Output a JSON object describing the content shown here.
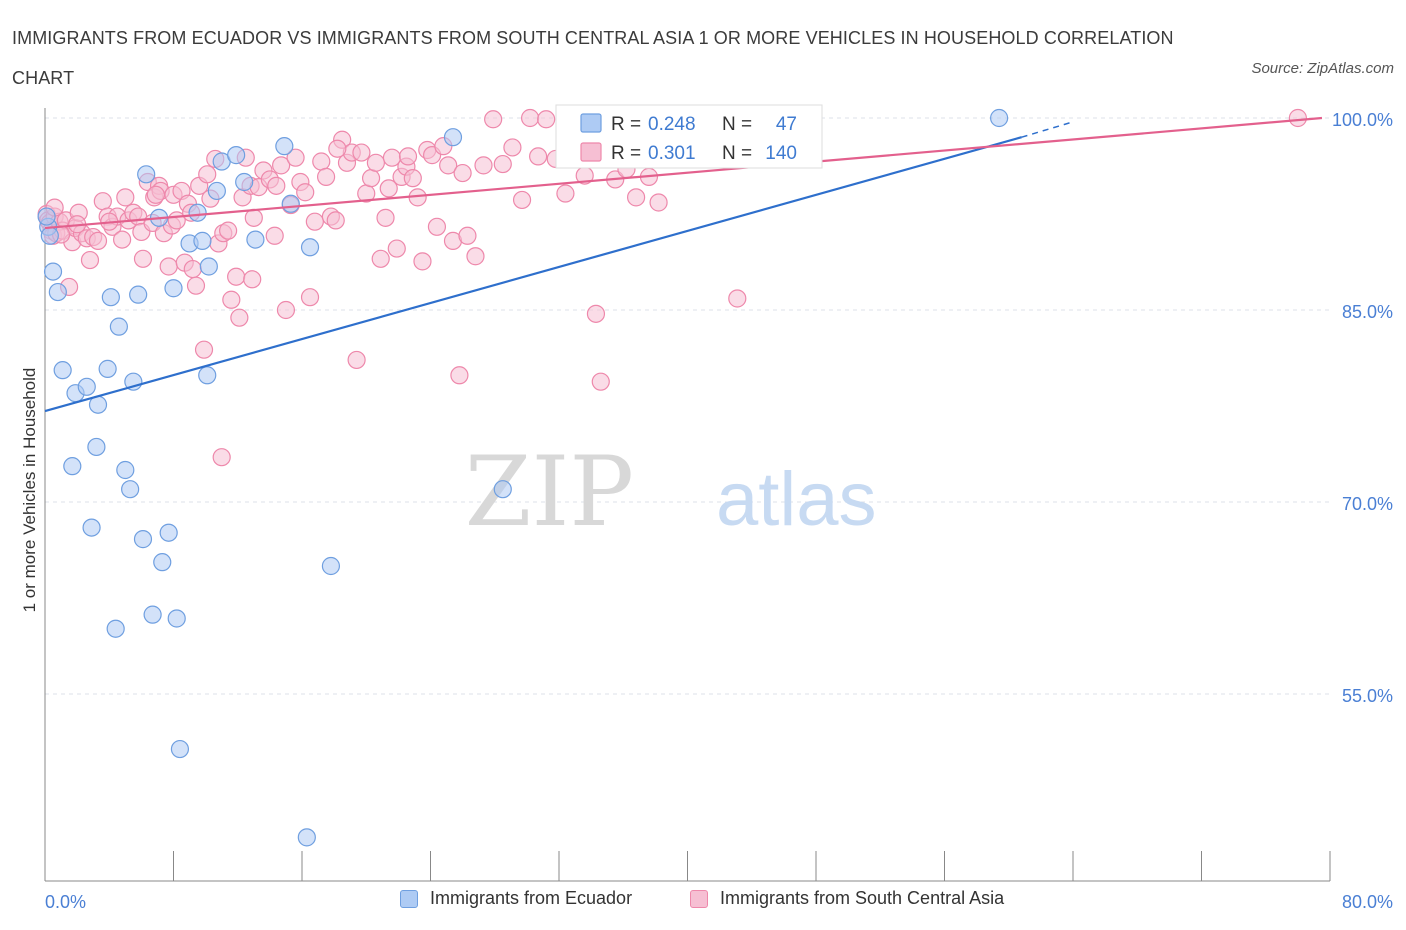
{
  "title": "IMMIGRANTS FROM ECUADOR VS IMMIGRANTS FROM SOUTH CENTRAL ASIA 1 OR MORE VEHICLES IN HOUSEHOLD CORRELATION CHART",
  "source": "Source: ZipAtlas.com",
  "watermark": {
    "zip": "ZIP",
    "atlas": "atlas"
  },
  "colors": {
    "blue": "#6f9fe0",
    "blue_fill": "#aecbf4",
    "blue_line": "#2e6fcc",
    "pink": "#ee88ab",
    "pink_fill": "#f6bfd3",
    "pink_line": "#e3608d",
    "axis_text": "#4a7fd4",
    "grid": "#dde2ea"
  },
  "legend": {
    "rows": [
      {
        "r_label": "R = ",
        "r_value": "0.248",
        "n_label": "N = ",
        "n_value": "47"
      },
      {
        "r_label": "R = ",
        "r_value": "0.301",
        "n_label": "N = ",
        "n_value": "140"
      }
    ]
  },
  "bottom_legend": [
    "Immigrants from Ecuador",
    "Immigrants from South Central Asia"
  ],
  "chart_data": {
    "type": "scatter",
    "title": "IMMIGRANTS FROM ECUADOR VS IMMIGRANTS FROM SOUTH CENTRAL ASIA 1 OR MORE VEHICLES IN HOUSEHOLD CORRELATION CHART",
    "xlabel": "",
    "ylabel": "1 or more Vehicles in Household",
    "xlim": [
      0,
      80
    ],
    "ylim": [
      40,
      100.5
    ],
    "x_tick_labels": [
      "0.0%",
      "80.0%"
    ],
    "y_ticks": [
      {
        "value": 100,
        "label": "100.0%"
      },
      {
        "value": 85,
        "label": "85.0%"
      },
      {
        "value": 70,
        "label": "70.0%"
      },
      {
        "value": 55,
        "label": "55.0%"
      }
    ],
    "grid": true,
    "legend_position": "top-center",
    "series": [
      {
        "name": "Immigrants from Ecuador",
        "color": "blue",
        "trend": {
          "x0": 0,
          "y0": 77.1,
          "x1": 60.8,
          "y1": 98.5,
          "dash_to_x": 64.0,
          "dash_to_y": 99.7
        },
        "points": [
          [
            0.2,
            91.5
          ],
          [
            0.3,
            90.8
          ],
          [
            0.5,
            88.0
          ],
          [
            0.8,
            86.4
          ],
          [
            1.1,
            80.3
          ],
          [
            1.7,
            72.8
          ],
          [
            1.9,
            78.5
          ],
          [
            2.6,
            79.0
          ],
          [
            2.9,
            68.0
          ],
          [
            3.2,
            74.3
          ],
          [
            3.3,
            77.6
          ],
          [
            3.9,
            80.4
          ],
          [
            4.1,
            86.0
          ],
          [
            4.4,
            60.1
          ],
          [
            4.6,
            83.7
          ],
          [
            5.0,
            72.5
          ],
          [
            5.3,
            71.0
          ],
          [
            5.5,
            79.4
          ],
          [
            5.8,
            86.2
          ],
          [
            6.1,
            67.1
          ],
          [
            6.3,
            95.6
          ],
          [
            6.7,
            61.2
          ],
          [
            7.1,
            92.2
          ],
          [
            7.3,
            65.3
          ],
          [
            7.7,
            67.6
          ],
          [
            8.0,
            86.7
          ],
          [
            8.2,
            60.9
          ],
          [
            8.4,
            50.7
          ],
          [
            9.0,
            90.2
          ],
          [
            9.5,
            92.6
          ],
          [
            9.8,
            90.4
          ],
          [
            10.2,
            88.4
          ],
          [
            10.1,
            79.9
          ],
          [
            10.7,
            94.3
          ],
          [
            11.0,
            96.6
          ],
          [
            11.9,
            97.1
          ],
          [
            12.4,
            95.0
          ],
          [
            13.1,
            90.5
          ],
          [
            14.9,
            97.8
          ],
          [
            15.3,
            93.3
          ],
          [
            16.3,
            43.8
          ],
          [
            16.5,
            89.9
          ],
          [
            17.8,
            65.0
          ],
          [
            25.4,
            98.5
          ],
          [
            28.5,
            71.0
          ],
          [
            59.4,
            100.0
          ],
          [
            0.1,
            92.3
          ]
        ]
      },
      {
        "name": "Immigrants from South Central Asia",
        "color": "pink",
        "trend": {
          "x0": 0,
          "y0": 91.4,
          "x1": 79.5,
          "y1": 100.0
        },
        "points": [
          [
            0.1,
            92.5
          ],
          [
            0.2,
            92.0
          ],
          [
            0.3,
            91.8
          ],
          [
            0.4,
            91.2
          ],
          [
            0.5,
            90.8
          ],
          [
            0.6,
            92.3
          ],
          [
            0.7,
            91.0
          ],
          [
            0.9,
            91.9
          ],
          [
            1.1,
            91.2
          ],
          [
            1.3,
            92.0
          ],
          [
            1.5,
            86.8
          ],
          [
            1.7,
            90.3
          ],
          [
            1.9,
            91.4
          ],
          [
            2.1,
            92.6
          ],
          [
            2.3,
            91.0
          ],
          [
            2.6,
            90.6
          ],
          [
            2.8,
            88.9
          ],
          [
            3.0,
            90.7
          ],
          [
            3.3,
            90.4
          ],
          [
            3.6,
            93.5
          ],
          [
            3.9,
            92.3
          ],
          [
            4.2,
            91.5
          ],
          [
            4.5,
            92.3
          ],
          [
            4.8,
            90.5
          ],
          [
            5.0,
            93.8
          ],
          [
            5.2,
            92.0
          ],
          [
            5.5,
            92.6
          ],
          [
            5.8,
            92.3
          ],
          [
            6.0,
            91.1
          ],
          [
            6.1,
            89.0
          ],
          [
            6.4,
            95.0
          ],
          [
            6.7,
            91.8
          ],
          [
            6.8,
            93.8
          ],
          [
            7.1,
            94.7
          ],
          [
            7.2,
            94.3
          ],
          [
            7.4,
            91.0
          ],
          [
            7.7,
            88.4
          ],
          [
            7.9,
            91.6
          ],
          [
            8.0,
            94.0
          ],
          [
            8.2,
            92.0
          ],
          [
            8.5,
            94.3
          ],
          [
            8.7,
            88.7
          ],
          [
            8.9,
            93.3
          ],
          [
            9.1,
            92.6
          ],
          [
            9.4,
            86.9
          ],
          [
            9.6,
            94.7
          ],
          [
            9.9,
            81.9
          ],
          [
            10.1,
            95.6
          ],
          [
            10.3,
            93.7
          ],
          [
            10.6,
            96.8
          ],
          [
            10.8,
            90.2
          ],
          [
            11.0,
            73.5
          ],
          [
            11.1,
            91.0
          ],
          [
            11.4,
            91.2
          ],
          [
            11.6,
            85.8
          ],
          [
            11.9,
            87.6
          ],
          [
            12.1,
            84.4
          ],
          [
            12.3,
            93.8
          ],
          [
            12.5,
            96.9
          ],
          [
            12.8,
            94.7
          ],
          [
            12.9,
            87.4
          ],
          [
            13.3,
            94.6
          ],
          [
            13.6,
            95.9
          ],
          [
            14.0,
            95.2
          ],
          [
            14.4,
            94.7
          ],
          [
            14.7,
            96.3
          ],
          [
            15.0,
            85.0
          ],
          [
            15.3,
            93.2
          ],
          [
            15.6,
            96.9
          ],
          [
            15.9,
            95.0
          ],
          [
            16.2,
            94.2
          ],
          [
            16.5,
            86.0
          ],
          [
            16.8,
            91.9
          ],
          [
            17.2,
            96.6
          ],
          [
            17.5,
            95.4
          ],
          [
            17.8,
            92.3
          ],
          [
            18.1,
            92.0
          ],
          [
            18.5,
            98.3
          ],
          [
            18.8,
            96.5
          ],
          [
            19.1,
            97.3
          ],
          [
            19.4,
            81.1
          ],
          [
            19.7,
            97.3
          ],
          [
            20.0,
            94.1
          ],
          [
            20.3,
            95.3
          ],
          [
            20.6,
            96.5
          ],
          [
            20.9,
            89.0
          ],
          [
            21.2,
            92.2
          ],
          [
            21.4,
            94.5
          ],
          [
            21.6,
            96.9
          ],
          [
            21.9,
            89.8
          ],
          [
            22.2,
            95.4
          ],
          [
            22.5,
            96.2
          ],
          [
            22.9,
            95.3
          ],
          [
            23.2,
            93.8
          ],
          [
            23.5,
            88.8
          ],
          [
            23.8,
            97.5
          ],
          [
            24.1,
            97.1
          ],
          [
            24.4,
            91.5
          ],
          [
            24.8,
            97.8
          ],
          [
            25.1,
            96.3
          ],
          [
            25.4,
            90.4
          ],
          [
            25.8,
            79.9
          ],
          [
            26.3,
            90.8
          ],
          [
            26.8,
            89.2
          ],
          [
            27.3,
            96.3
          ],
          [
            27.9,
            99.9
          ],
          [
            28.5,
            96.4
          ],
          [
            29.1,
            97.7
          ],
          [
            29.7,
            93.6
          ],
          [
            30.2,
            100.0
          ],
          [
            30.7,
            97.0
          ],
          [
            31.2,
            99.9
          ],
          [
            31.8,
            96.8
          ],
          [
            32.4,
            94.1
          ],
          [
            33.0,
            96.9
          ],
          [
            33.6,
            95.5
          ],
          [
            34.3,
            84.7
          ],
          [
            34.6,
            79.4
          ],
          [
            35.0,
            99.9
          ],
          [
            35.5,
            95.2
          ],
          [
            36.2,
            96.0
          ],
          [
            36.8,
            93.8
          ],
          [
            37.3,
            99.8
          ],
          [
            37.6,
            95.4
          ],
          [
            38.2,
            93.4
          ],
          [
            39.7,
            97.6
          ],
          [
            40.4,
            99.9
          ],
          [
            43.1,
            85.9
          ],
          [
            78.0,
            100.0
          ],
          [
            0.6,
            93.0
          ],
          [
            1.0,
            90.9
          ],
          [
            2.0,
            91.7
          ],
          [
            4.0,
            91.9
          ],
          [
            6.9,
            94.0
          ],
          [
            9.2,
            88.2
          ],
          [
            13.0,
            92.2
          ],
          [
            14.3,
            90.8
          ],
          [
            18.2,
            97.6
          ],
          [
            22.6,
            97.0
          ],
          [
            26.0,
            95.7
          ]
        ]
      }
    ]
  }
}
